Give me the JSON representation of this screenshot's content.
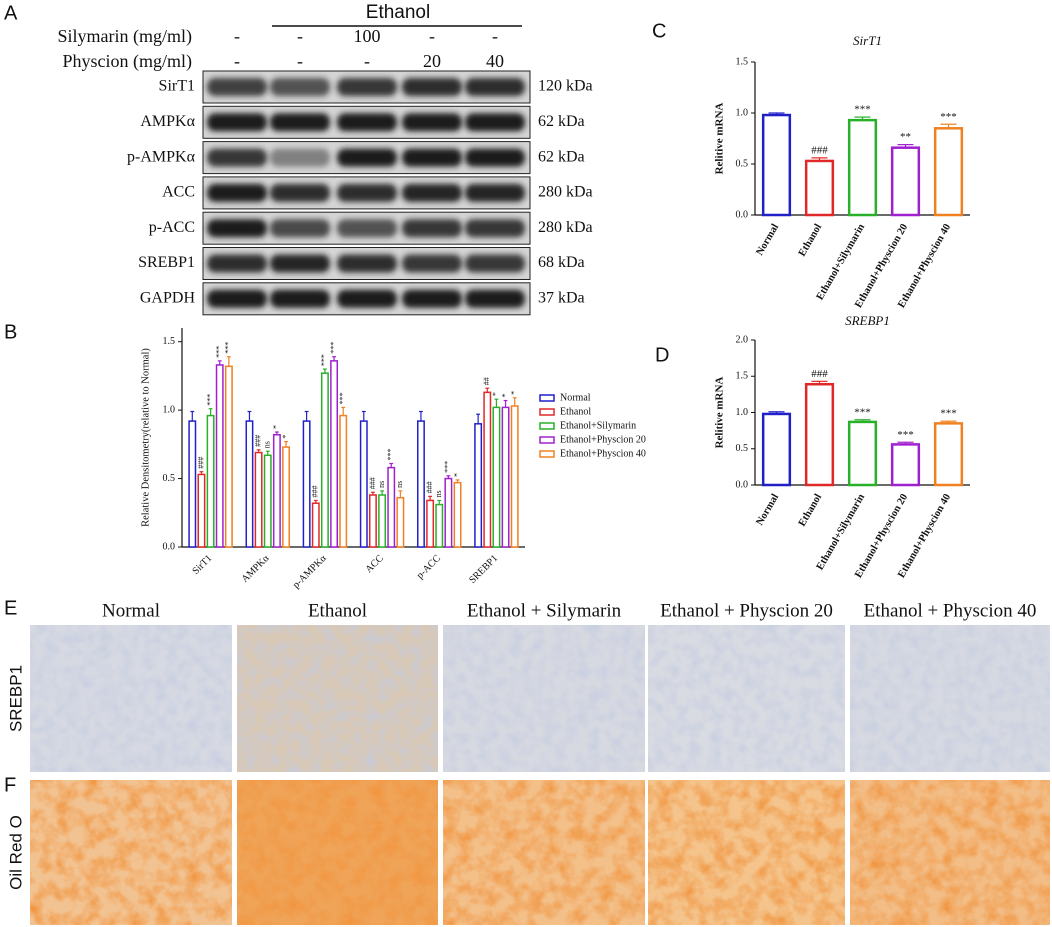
{
  "panel_labels": [
    "A",
    "B",
    "C",
    "D",
    "E",
    "F"
  ],
  "blot": {
    "group_label": "Ethanol",
    "treatments": [
      {
        "name": "Silymarin (mg/ml)",
        "doses": [
          "-",
          "-",
          "100",
          "-",
          "-"
        ]
      },
      {
        "name": "Physcion (mg/ml)",
        "doses": [
          "-",
          "-",
          "-",
          "20",
          "40"
        ]
      }
    ],
    "proteins": [
      {
        "name": "SirT1",
        "size": "120 kDa"
      },
      {
        "name": "AMPKα",
        "size": "62 kDa"
      },
      {
        "name": "p-AMPKα",
        "size": "62 kDa"
      },
      {
        "name": "ACC",
        "size": "280 kDa"
      },
      {
        "name": "p-ACC",
        "size": "280 kDa"
      },
      {
        "name": "SREBP1",
        "size": "68 kDa"
      },
      {
        "name": "GAPDH",
        "size": "37 kDa"
      }
    ]
  },
  "chart_data": [
    {
      "type": "bar",
      "y_label": "Relative Densitometry(relative to Normal)",
      "categories": [
        "SirT1",
        "AMPKα",
        "p-AMPKα",
        "ACC",
        "p-ACC",
        "SREBP1"
      ],
      "series": [
        {
          "name": "Normal",
          "color": "#2020c8",
          "values": [
            0.92,
            0.92,
            0.92,
            0.92,
            0.92,
            0.9
          ],
          "errors": [
            0.07,
            0.07,
            0.07,
            0.07,
            0.07,
            0.07
          ],
          "annotations": [
            null,
            null,
            null,
            null,
            null,
            null
          ]
        },
        {
          "name": "Ethanol",
          "color": "#e02828",
          "values": [
            0.53,
            0.69,
            0.32,
            0.38,
            0.34,
            1.13
          ],
          "errors": [
            0.02,
            0.02,
            0.02,
            0.02,
            0.03,
            0.03
          ],
          "annotations": [
            "###",
            "###",
            "###",
            "###",
            "###",
            "##"
          ]
        },
        {
          "name": "Ethanol+Silymarin",
          "color": "#28b028",
          "values": [
            0.96,
            0.67,
            1.27,
            0.38,
            0.31,
            1.02
          ],
          "errors": [
            0.05,
            0.03,
            0.03,
            0.03,
            0.03,
            0.06
          ],
          "annotations": [
            "***",
            "ns",
            "***",
            "ns",
            "ns",
            "*"
          ]
        },
        {
          "name": "Ethanol+Physcion 20",
          "color": "#a020d0",
          "values": [
            1.33,
            0.82,
            1.36,
            0.58,
            0.5,
            1.02
          ],
          "errors": [
            0.03,
            0.02,
            0.03,
            0.03,
            0.02,
            0.05
          ],
          "annotations": [
            "***",
            "*",
            "***",
            "***",
            "***",
            "*"
          ]
        },
        {
          "name": "Ethanol+Physcion 40",
          "color": "#f08020",
          "values": [
            1.32,
            0.73,
            0.96,
            0.36,
            0.47,
            1.03
          ],
          "errors": [
            0.07,
            0.04,
            0.06,
            0.05,
            0.02,
            0.06
          ],
          "annotations": [
            "***",
            "*",
            "***",
            "ns",
            "*",
            "*"
          ]
        }
      ],
      "ylim": [
        0,
        1.6
      ],
      "yticks": [
        {
          "value": 0,
          "label": "0.0"
        },
        {
          "value": 0.5,
          "label": "0.5"
        },
        {
          "value": 1,
          "label": "1.0"
        },
        {
          "value": 1.5,
          "label": "1.5"
        }
      ],
      "legend": "right"
    },
    {
      "type": "bar",
      "title": "SirT1",
      "y_label": "Relitive mRNA",
      "categories": [
        "Normal",
        "Ethanol",
        "Ethanol+Silymarin",
        "Ethanol+Physcion 20",
        "Ethanol+Physcion 40"
      ],
      "values": [
        0.98,
        0.53,
        0.93,
        0.66,
        0.85
      ],
      "errors": [
        0.02,
        0.03,
        0.03,
        0.03,
        0.04
      ],
      "annotations": [
        null,
        "###",
        "***",
        "**",
        "***"
      ],
      "colors": [
        "#2020c8",
        "#e02828",
        "#28b028",
        "#a020d0",
        "#f08020"
      ],
      "ylim": [
        0,
        1.5
      ],
      "yticks": [
        {
          "value": 0,
          "label": "0.0"
        },
        {
          "value": 0.5,
          "label": "0.5"
        },
        {
          "value": 1,
          "label": "1.0"
        },
        {
          "value": 1.5,
          "label": "1.5"
        }
      ]
    },
    {
      "type": "bar",
      "title": "SREBP1",
      "y_label": "Relitive mRNA",
      "categories": [
        "Normal",
        "Ethanol",
        "Ethanol+Silymarin",
        "Ethanol+Physcion 20",
        "Ethanol+Physcion 40"
      ],
      "values": [
        0.98,
        1.39,
        0.87,
        0.56,
        0.85
      ],
      "errors": [
        0.03,
        0.04,
        0.03,
        0.03,
        0.03
      ],
      "annotations": [
        null,
        "###",
        "***",
        "***",
        "***"
      ],
      "colors": [
        "#2020c8",
        "#e02828",
        "#28b028",
        "#a020d0",
        "#f08020"
      ],
      "ylim": [
        0,
        2
      ],
      "yticks": [
        {
          "value": 0,
          "label": "0.0"
        },
        {
          "value": 0.5,
          "label": "0.5"
        },
        {
          "value": 1,
          "label": "1.0"
        },
        {
          "value": 1.5,
          "label": "1.5"
        },
        {
          "value": 2,
          "label": "2.0"
        }
      ]
    }
  ],
  "micrographs": {
    "columns": [
      "Normal",
      "Ethanol",
      "Ethanol + Silymarin",
      "Ethanol + Physcion 20",
      "Ethanol + Physcion 40"
    ],
    "rows": [
      "SREBP1",
      "Oil Red O"
    ]
  }
}
